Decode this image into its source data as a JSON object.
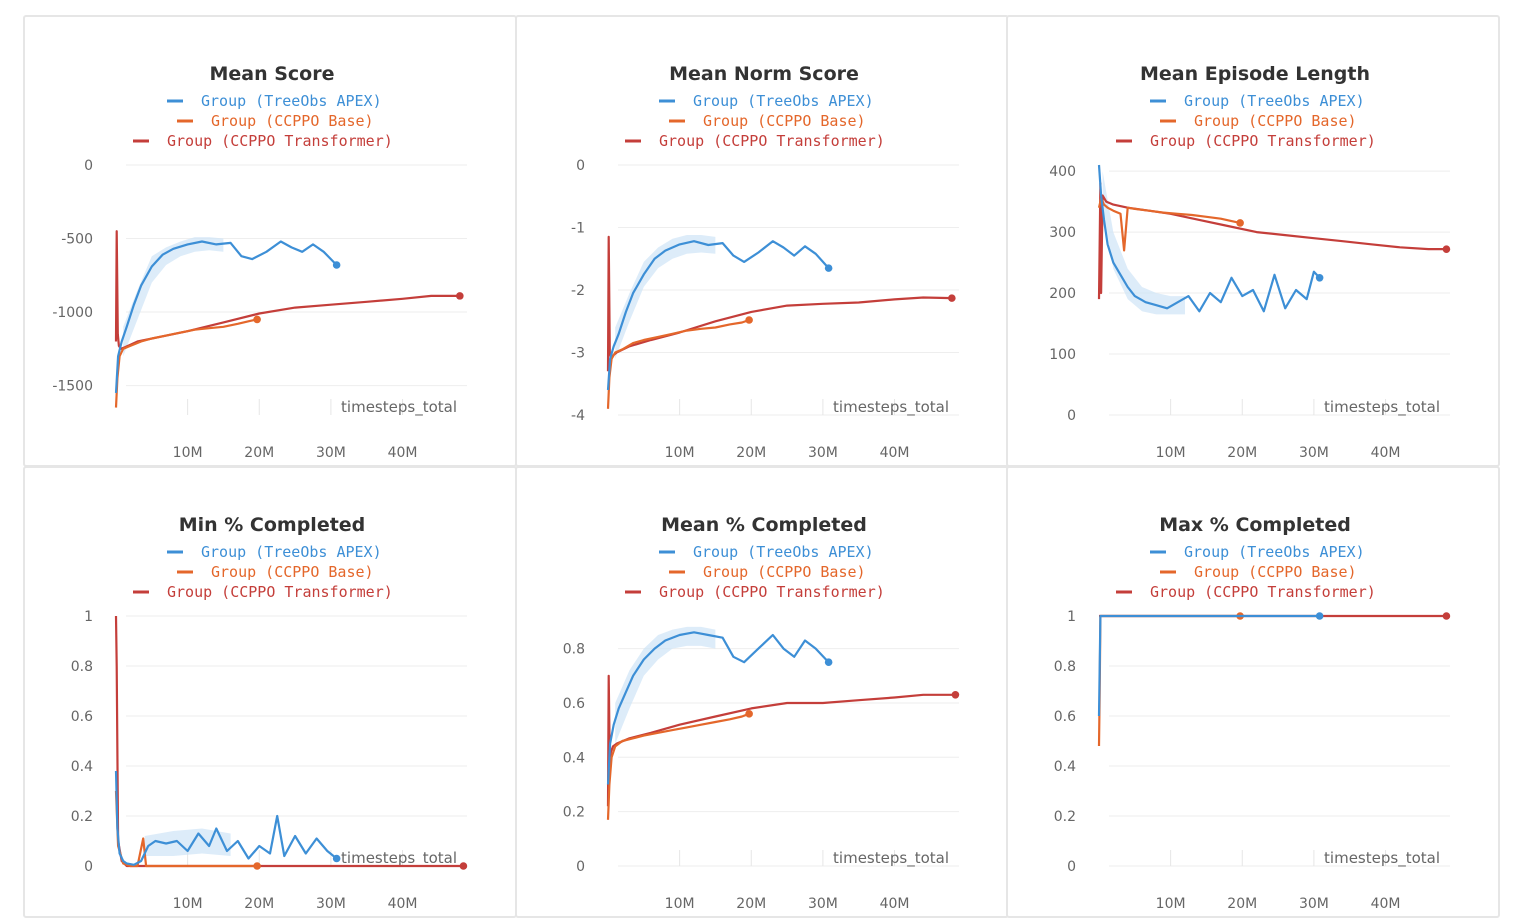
{
  "colors": {
    "treeobs": "#3d8fd6",
    "ccppo_base": "#e4672b",
    "ccppo_transformer": "#c43e3a",
    "band": "#cfe4f6",
    "grid": "#eeeeee"
  },
  "legend": [
    "Group (TreeObs APEX)",
    "Group (CCPPO Base)",
    "Group (CCPPO Transformer)"
  ],
  "chart_data": [
    {
      "type": "line",
      "title": "Mean Score",
      "xlabel": "timesteps_total",
      "ylabel": "",
      "x_ticks": [
        "10M",
        "20M",
        "30M",
        "40M"
      ],
      "y_ticks": [
        "0",
        "-500",
        "-1000",
        "-1500"
      ],
      "xlim": [
        0,
        49000000
      ],
      "ylim": [
        -1700,
        0
      ],
      "series": [
        {
          "name": "Group (TreeObs APEX)",
          "color_key": "treeobs",
          "x": [
            0,
            300000,
            800000,
            1500000,
            2500000,
            3500000,
            5000000,
            6500000,
            8000000,
            10000000,
            12000000,
            14000000,
            16000000,
            17500000,
            19000000,
            21000000,
            23000000,
            24500000,
            26000000,
            27500000,
            29000000,
            30800000
          ],
          "y": [
            -1550,
            -1300,
            -1200,
            -1100,
            -950,
            -820,
            -690,
            -610,
            -570,
            -540,
            -520,
            -540,
            -530,
            -620,
            -640,
            -590,
            -520,
            -560,
            -590,
            -540,
            -590,
            -680
          ]
        },
        {
          "name": "Group (CCPPO Base)",
          "color_key": "ccppo_base",
          "x": [
            0,
            200000,
            500000,
            1000000,
            2000000,
            3500000,
            5000000,
            7000000,
            9000000,
            11000000,
            13000000,
            15000000,
            17000000,
            18700000,
            19700000
          ],
          "y": [
            -1650,
            -1450,
            -1300,
            -1250,
            -1230,
            -1200,
            -1180,
            -1160,
            -1140,
            -1120,
            -1110,
            -1100,
            -1080,
            -1060,
            -1050
          ]
        },
        {
          "name": "Group (CCPPO Transformer)",
          "color_key": "ccppo_transformer",
          "x": [
            0,
            100000,
            250000,
            400000,
            700000,
            1200000,
            3000000,
            6000000,
            10000000,
            15000000,
            20000000,
            25000000,
            30000000,
            35000000,
            40000000,
            44000000,
            48000000
          ],
          "y": [
            -1200,
            -450,
            -1150,
            -1230,
            -1250,
            -1240,
            -1200,
            -1170,
            -1130,
            -1070,
            -1010,
            -970,
            -950,
            -930,
            -910,
            -890,
            -890
          ]
        }
      ],
      "band": {
        "x": [
          1000000,
          3000000,
          5000000,
          7000000,
          9000000,
          11000000,
          13000000,
          15000000
        ],
        "lo": [
          -1300,
          -1050,
          -800,
          -680,
          -620,
          -590,
          -580,
          -590
        ],
        "hi": [
          -1100,
          -850,
          -620,
          -560,
          -520,
          -490,
          -490,
          -500
        ]
      }
    },
    {
      "type": "line",
      "title": "Mean Norm Score",
      "xlabel": "timesteps_total",
      "ylabel": "",
      "x_ticks": [
        "10M",
        "20M",
        "30M",
        "40M"
      ],
      "y_ticks": [
        "0",
        "-1",
        "-2",
        "-3",
        "-4"
      ],
      "xlim": [
        0,
        49000000
      ],
      "ylim": [
        -4,
        0
      ],
      "series": [
        {
          "name": "Group (TreeObs APEX)",
          "color_key": "treeobs",
          "x": [
            0,
            300000,
            800000,
            1500000,
            2500000,
            3500000,
            5000000,
            6500000,
            8000000,
            10000000,
            12000000,
            14000000,
            16000000,
            17500000,
            19000000,
            21000000,
            23000000,
            24500000,
            26000000,
            27500000,
            29000000,
            30800000
          ],
          "y": [
            -3.6,
            -3.1,
            -2.9,
            -2.7,
            -2.35,
            -2.05,
            -1.75,
            -1.5,
            -1.37,
            -1.27,
            -1.22,
            -1.28,
            -1.25,
            -1.45,
            -1.55,
            -1.4,
            -1.22,
            -1.32,
            -1.45,
            -1.3,
            -1.42,
            -1.65
          ]
        },
        {
          "name": "Group (CCPPO Base)",
          "color_key": "ccppo_base",
          "x": [
            0,
            200000,
            500000,
            1000000,
            2000000,
            3500000,
            5000000,
            7000000,
            9000000,
            11000000,
            13000000,
            15000000,
            17000000,
            18700000,
            19700000
          ],
          "y": [
            -3.9,
            -3.4,
            -3.1,
            -3.0,
            -2.95,
            -2.85,
            -2.8,
            -2.75,
            -2.7,
            -2.65,
            -2.62,
            -2.6,
            -2.55,
            -2.52,
            -2.48
          ]
        },
        {
          "name": "Group (CCPPO Transformer)",
          "color_key": "ccppo_transformer",
          "x": [
            0,
            100000,
            250000,
            400000,
            700000,
            1200000,
            3000000,
            6000000,
            10000000,
            15000000,
            20000000,
            25000000,
            30000000,
            35000000,
            40000000,
            44000000,
            48000000
          ],
          "y": [
            -3.3,
            -1.15,
            -3.0,
            -3.1,
            -3.05,
            -3.0,
            -2.9,
            -2.8,
            -2.68,
            -2.5,
            -2.35,
            -2.25,
            -2.22,
            -2.2,
            -2.15,
            -2.12,
            -2.13
          ]
        }
      ],
      "band": {
        "x": [
          1000000,
          3000000,
          5000000,
          7000000,
          9000000,
          11000000,
          13000000,
          15000000
        ],
        "lo": [
          -3.1,
          -2.5,
          -1.95,
          -1.65,
          -1.5,
          -1.42,
          -1.4,
          -1.42
        ],
        "hi": [
          -2.6,
          -2.05,
          -1.55,
          -1.32,
          -1.18,
          -1.12,
          -1.12,
          -1.15
        ]
      }
    },
    {
      "type": "line",
      "title": "Mean Episode Length",
      "xlabel": "timesteps_total",
      "ylabel": "",
      "x_ticks": [
        "10M",
        "20M",
        "30M",
        "40M"
      ],
      "y_ticks": [
        "400",
        "300",
        "200",
        "100",
        "0"
      ],
      "xlim": [
        0,
        49000000
      ],
      "ylim": [
        0,
        410
      ],
      "series": [
        {
          "name": "Group (TreeObs APEX)",
          "color_key": "treeobs",
          "x": [
            0,
            300000,
            700000,
            1200000,
            2000000,
            3000000,
            4000000,
            5000000,
            6500000,
            8000000,
            9500000,
            11000000,
            12500000,
            14000000,
            15500000,
            17000000,
            18500000,
            20000000,
            21500000,
            23000000,
            24500000,
            26000000,
            27500000,
            29000000,
            30000000,
            30800000
          ],
          "y": [
            410,
            360,
            320,
            280,
            250,
            230,
            210,
            195,
            185,
            180,
            175,
            185,
            195,
            170,
            200,
            185,
            225,
            195,
            205,
            170,
            230,
            175,
            205,
            190,
            235,
            225
          ]
        },
        {
          "name": "Group (CCPPO Base)",
          "color_key": "ccppo_base",
          "x": [
            0,
            300000,
            700000,
            1200000,
            2000000,
            3000000,
            3500000,
            4000000,
            5000000,
            7000000,
            9000000,
            11000000,
            13000000,
            15000000,
            17000000,
            18500000,
            19700000
          ],
          "y": [
            340,
            355,
            345,
            340,
            335,
            330,
            270,
            340,
            338,
            335,
            332,
            330,
            328,
            325,
            322,
            318,
            315
          ]
        },
        {
          "name": "Group (CCPPO Transformer)",
          "color_key": "ccppo_transformer",
          "x": [
            0,
            200000,
            300000,
            500000,
            1000000,
            2000000,
            4000000,
            7000000,
            10000000,
            14000000,
            18000000,
            22000000,
            26000000,
            30000000,
            34000000,
            38000000,
            42000000,
            46000000,
            48500000
          ],
          "y": [
            190,
            380,
            200,
            360,
            350,
            345,
            340,
            335,
            330,
            320,
            310,
            300,
            295,
            290,
            285,
            280,
            275,
            272,
            272
          ]
        }
      ],
      "band": {
        "x": [
          500000,
          2000000,
          4000000,
          6000000,
          8000000,
          10000000,
          12000000
        ],
        "lo": [
          340,
          240,
          190,
          170,
          165,
          165,
          165
        ],
        "hi": [
          400,
          300,
          240,
          210,
          200,
          195,
          195
        ]
      }
    },
    {
      "type": "line",
      "title": "Min % Completed",
      "xlabel": "timesteps_total",
      "ylabel": "",
      "x_ticks": [
        "10M",
        "20M",
        "30M",
        "40M"
      ],
      "y_ticks": [
        "1",
        "0.8",
        "0.6",
        "0.4",
        "0.2",
        "0"
      ],
      "xlim": [
        0,
        49000000
      ],
      "ylim": [
        0,
        1
      ],
      "series": [
        {
          "name": "Group (TreeObs APEX)",
          "color_key": "treeobs",
          "x": [
            0,
            200000,
            500000,
            1000000,
            1500000,
            2500000,
            3500000,
            4500000,
            5500000,
            7000000,
            8500000,
            10000000,
            11500000,
            13000000,
            14000000,
            15500000,
            17000000,
            18500000,
            20000000,
            21500000,
            22500000,
            23500000,
            25000000,
            26500000,
            28000000,
            29500000,
            30800000
          ],
          "y": [
            0.38,
            0.15,
            0.05,
            0.02,
            0.01,
            0.005,
            0.02,
            0.08,
            0.1,
            0.09,
            0.1,
            0.06,
            0.13,
            0.08,
            0.15,
            0.06,
            0.1,
            0.03,
            0.08,
            0.05,
            0.2,
            0.04,
            0.12,
            0.05,
            0.11,
            0.06,
            0.03
          ]
        },
        {
          "name": "Group (CCPPO Base)",
          "color_key": "ccppo_base",
          "x": [
            0,
            300000,
            1000000,
            2000000,
            3000000,
            3800000,
            4200000,
            6000000,
            10000000,
            15000000,
            19700000
          ],
          "y": [
            0.3,
            0.08,
            0.01,
            0,
            0,
            0.11,
            0,
            0,
            0,
            0,
            0
          ]
        },
        {
          "name": "Group (CCPPO Transformer)",
          "color_key": "ccppo_transformer",
          "x": [
            0,
            100000,
            300000,
            800000,
            1500000,
            3000000,
            10000000,
            20000000,
            30000000,
            40000000,
            48500000
          ],
          "y": [
            1.0,
            0.8,
            0.1,
            0.02,
            0,
            0,
            0,
            0,
            0,
            0,
            0
          ]
        }
      ],
      "band": {
        "x": [
          4000000,
          8000000,
          12000000,
          16000000
        ],
        "lo": [
          0.04,
          0.04,
          0.05,
          0.04
        ],
        "hi": [
          0.12,
          0.14,
          0.15,
          0.13
        ]
      }
    },
    {
      "type": "line",
      "title": "Mean % Completed",
      "xlabel": "timesteps_total",
      "ylabel": "",
      "x_ticks": [
        "10M",
        "20M",
        "30M",
        "40M"
      ],
      "y_ticks": [
        "0.8",
        "0.6",
        "0.4",
        "0.2",
        "0"
      ],
      "xlim": [
        0,
        49000000
      ],
      "ylim": [
        0,
        0.92
      ],
      "series": [
        {
          "name": "Group (TreeObs APEX)",
          "color_key": "treeobs",
          "x": [
            0,
            300000,
            800000,
            1500000,
            2500000,
            3500000,
            5000000,
            6500000,
            8000000,
            10000000,
            12000000,
            14000000,
            16000000,
            17500000,
            19000000,
            21000000,
            23000000,
            24500000,
            26000000,
            27500000,
            29000000,
            30800000
          ],
          "y": [
            0.3,
            0.45,
            0.52,
            0.58,
            0.64,
            0.7,
            0.76,
            0.8,
            0.83,
            0.85,
            0.86,
            0.85,
            0.84,
            0.77,
            0.75,
            0.8,
            0.85,
            0.8,
            0.77,
            0.83,
            0.8,
            0.75
          ]
        },
        {
          "name": "Group (CCPPO Base)",
          "color_key": "ccppo_base",
          "x": [
            0,
            200000,
            500000,
            1000000,
            2000000,
            3500000,
            5000000,
            7000000,
            9000000,
            11000000,
            13000000,
            15000000,
            17000000,
            18700000,
            19700000
          ],
          "y": [
            0.17,
            0.3,
            0.4,
            0.44,
            0.46,
            0.47,
            0.48,
            0.49,
            0.5,
            0.51,
            0.52,
            0.53,
            0.54,
            0.55,
            0.56
          ]
        },
        {
          "name": "Group (CCPPO Transformer)",
          "color_key": "ccppo_transformer",
          "x": [
            0,
            100000,
            250000,
            400000,
            700000,
            1200000,
            3000000,
            6000000,
            10000000,
            15000000,
            20000000,
            25000000,
            30000000,
            35000000,
            40000000,
            44000000,
            48500000
          ],
          "y": [
            0.22,
            0.7,
            0.38,
            0.42,
            0.44,
            0.45,
            0.47,
            0.49,
            0.52,
            0.55,
            0.58,
            0.6,
            0.6,
            0.61,
            0.62,
            0.63,
            0.63
          ]
        }
      ],
      "band": {
        "x": [
          1000000,
          3000000,
          5000000,
          7000000,
          9000000,
          11000000,
          13000000,
          15000000
        ],
        "lo": [
          0.45,
          0.58,
          0.7,
          0.76,
          0.8,
          0.81,
          0.81,
          0.8
        ],
        "hi": [
          0.6,
          0.72,
          0.8,
          0.85,
          0.87,
          0.88,
          0.88,
          0.87
        ]
      }
    },
    {
      "type": "line",
      "title": "Max % Completed",
      "xlabel": "timesteps_total",
      "ylabel": "",
      "x_ticks": [
        "10M",
        "20M",
        "30M",
        "40M"
      ],
      "y_ticks": [
        "1",
        "0.8",
        "0.6",
        "0.4",
        "0.2",
        "0"
      ],
      "xlim": [
        0,
        49000000
      ],
      "ylim": [
        0,
        1
      ],
      "series": [
        {
          "name": "Group (TreeObs APEX)",
          "color_key": "treeobs",
          "x": [
            0,
            100000,
            200000,
            400000,
            30800000
          ],
          "y": [
            0.6,
            0.8,
            1.0,
            1.0,
            1.0
          ]
        },
        {
          "name": "Group (CCPPO Base)",
          "color_key": "ccppo_base",
          "x": [
            0,
            100000,
            200000,
            19700000
          ],
          "y": [
            0.48,
            0.7,
            1.0,
            1.0
          ]
        },
        {
          "name": "Group (CCPPO Transformer)",
          "color_key": "ccppo_transformer",
          "x": [
            0,
            100000,
            48500000
          ],
          "y": [
            1.0,
            1.0,
            1.0
          ]
        }
      ]
    }
  ]
}
